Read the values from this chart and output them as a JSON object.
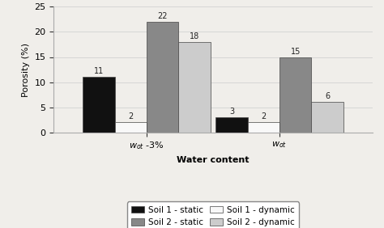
{
  "groups": [
    "$w_{ot}$ -3%",
    "$w_{ot}$"
  ],
  "xlabel": "Water content",
  "ylabel": "Porosity (%)",
  "ylim": [
    0,
    25
  ],
  "yticks": [
    0,
    5,
    10,
    15,
    20,
    25
  ],
  "series": [
    {
      "label": "Soil 1 - static",
      "color": "#111111",
      "values": [
        11,
        3
      ]
    },
    {
      "label": "Soil 1 - dynamic",
      "color": "#f8f8f8",
      "values": [
        2,
        2
      ]
    },
    {
      "label": "Soil 2 - static",
      "color": "#888888",
      "values": [
        22,
        15
      ]
    },
    {
      "label": "Soil 2 - dynamic",
      "color": "#cccccc",
      "values": [
        18,
        6
      ]
    }
  ],
  "bar_width": 0.12,
  "group_centers": [
    0.35,
    0.85
  ],
  "annotation_fontsize": 7,
  "axis_fontsize": 8,
  "legend_fontsize": 7.5,
  "edgecolor": "#444444",
  "background_color": "#f0eeea",
  "tick_color": "#333333"
}
